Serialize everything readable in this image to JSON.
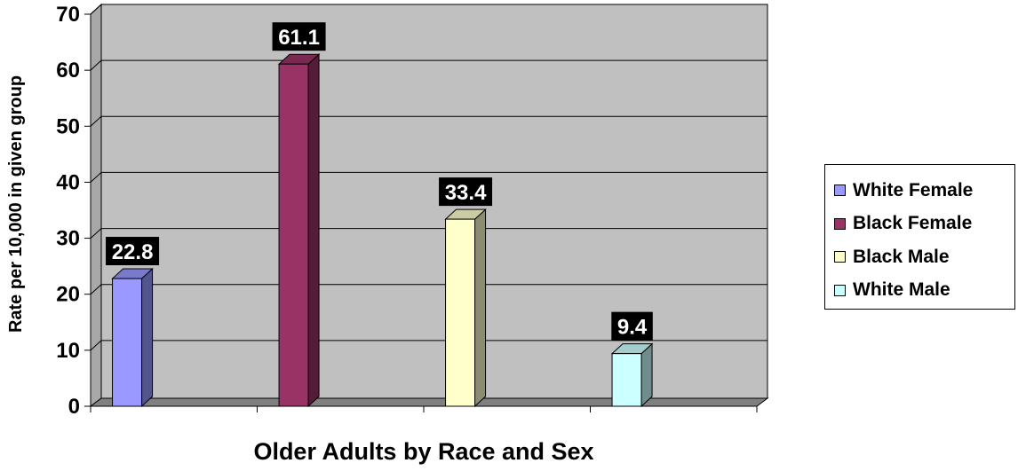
{
  "chart_data": {
    "type": "bar",
    "categories": [
      "White Female",
      "Black Female",
      "Black Male",
      "White Male"
    ],
    "series": [
      {
        "name": "White Female",
        "value": 22.8,
        "color": "#9999FF"
      },
      {
        "name": "Black Female",
        "value": 61.1,
        "color": "#993366"
      },
      {
        "name": "Black Male",
        "value": 33.4,
        "color": "#FFFFCC"
      },
      {
        "name": "White Male",
        "value": 9.4,
        "color": "#CCFFFF"
      }
    ],
    "data_labels": [
      "22.8",
      "61.1",
      "33.4",
      "9.4"
    ],
    "xlabel": "Older Adults by Race and Sex",
    "ylabel": "Rate per 10,000 in given group",
    "ylim": [
      0,
      70
    ],
    "yticks": [
      "0",
      "10",
      "20",
      "30",
      "40",
      "50",
      "60",
      "70"
    ],
    "grid": true,
    "legend_position": "right",
    "colors": {
      "plot_background": "#C0C0C0",
      "floor": "#808080",
      "gridline": "#000000"
    }
  }
}
